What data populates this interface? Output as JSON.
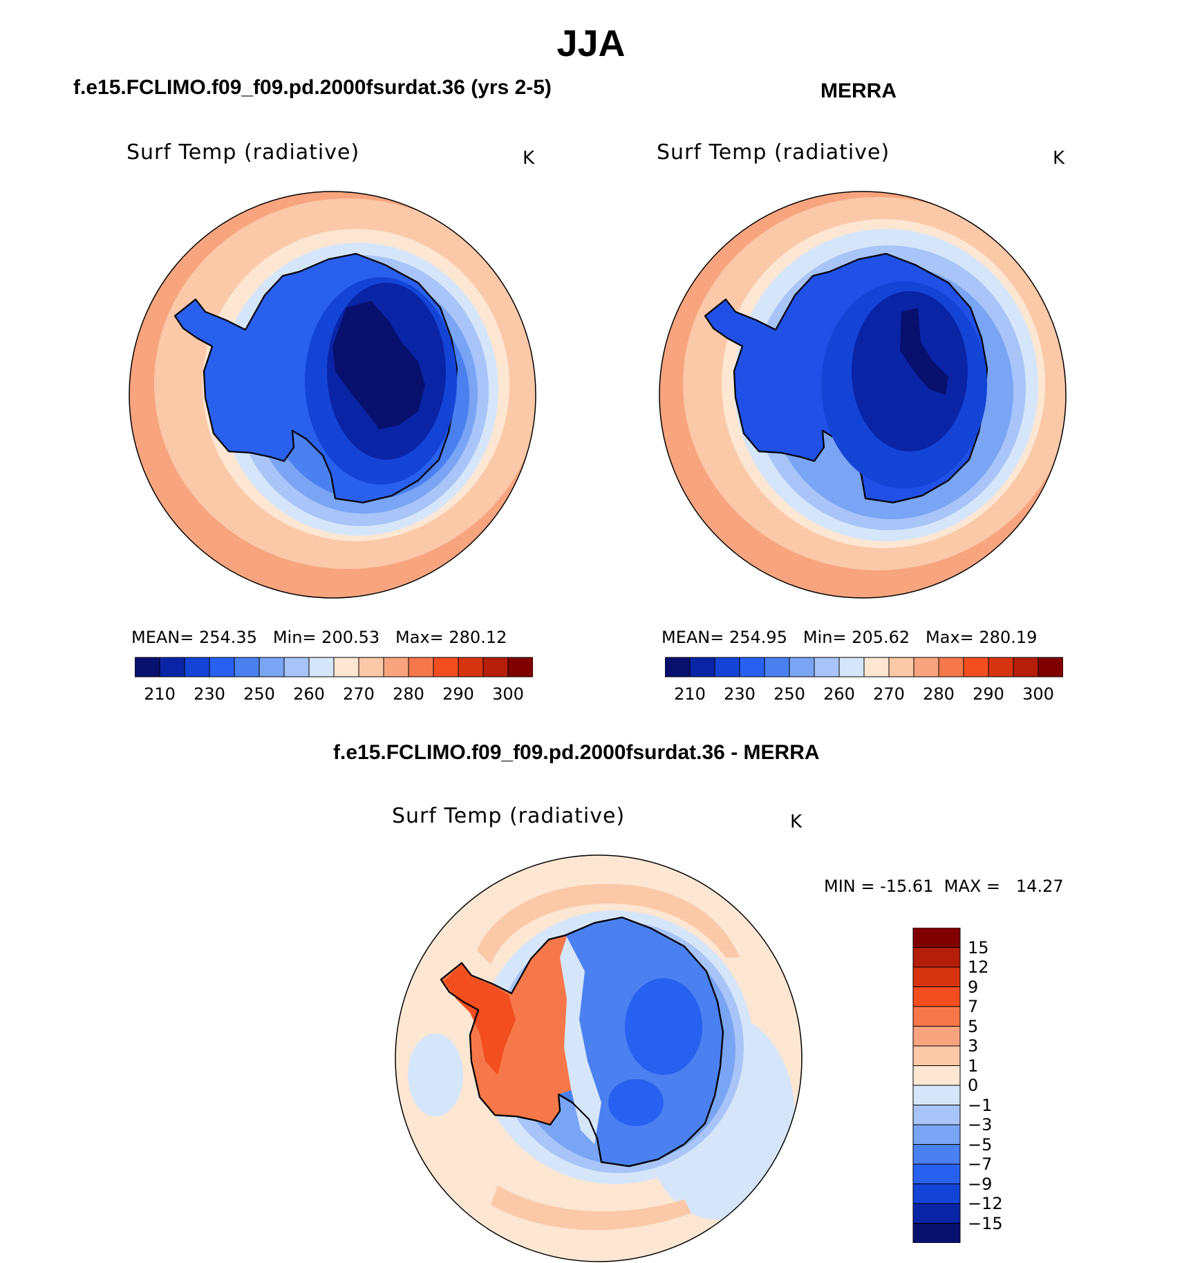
{
  "title": "JJA",
  "panels": {
    "model": {
      "heading": "f.e15.FCLIMO.f09_f09.pd.2000fsurdat.36 (yrs 2-5)",
      "variable": "Surf Temp (radiative)",
      "units": "K",
      "stats": "MEAN= 254.35   Min= 200.53   Max= 280.12"
    },
    "obs": {
      "heading": "MERRA",
      "variable": "Surf Temp (radiative)",
      "units": "K",
      "stats": "MEAN= 254.95   Min= 205.62   Max= 280.19"
    },
    "diff": {
      "heading": "f.e15.FCLIMO.f09_f09.pd.2000fsurdat.36 - MERRA",
      "variable": "Surf Temp (radiative)",
      "units": "K",
      "stats": "MIN = -15.61  MAX =   14.27"
    }
  },
  "colorbars": {
    "abs": {
      "colors": [
        "#08106e",
        "#0a24a6",
        "#1444d6",
        "#2860f0",
        "#4a80f0",
        "#7aa4f4",
        "#a8c4f8",
        "#d6e6fa",
        "#fde6d2",
        "#fbc8a8",
        "#f8a47e",
        "#f6784a",
        "#f24e20",
        "#d63410",
        "#b41e0a",
        "#800000"
      ],
      "tick_labels": [
        "210",
        "230",
        "250",
        "260",
        "270",
        "280",
        "290",
        "300"
      ]
    },
    "diff": {
      "colors": [
        "#08106e",
        "#0a24a6",
        "#1444d6",
        "#2860f0",
        "#4a80f0",
        "#7aa4f4",
        "#a8c4f8",
        "#d6e6fa",
        "#fde6d2",
        "#fbc8a8",
        "#f8a47e",
        "#f6784a",
        "#f24e20",
        "#d63410",
        "#b41e0a",
        "#800000"
      ],
      "tick_labels": [
        "15",
        "12",
        "9",
        "7",
        "5",
        "3",
        "1",
        "0",
        "−1",
        "−3",
        "−5",
        "−7",
        "−9",
        "−12",
        "−15"
      ]
    }
  }
}
